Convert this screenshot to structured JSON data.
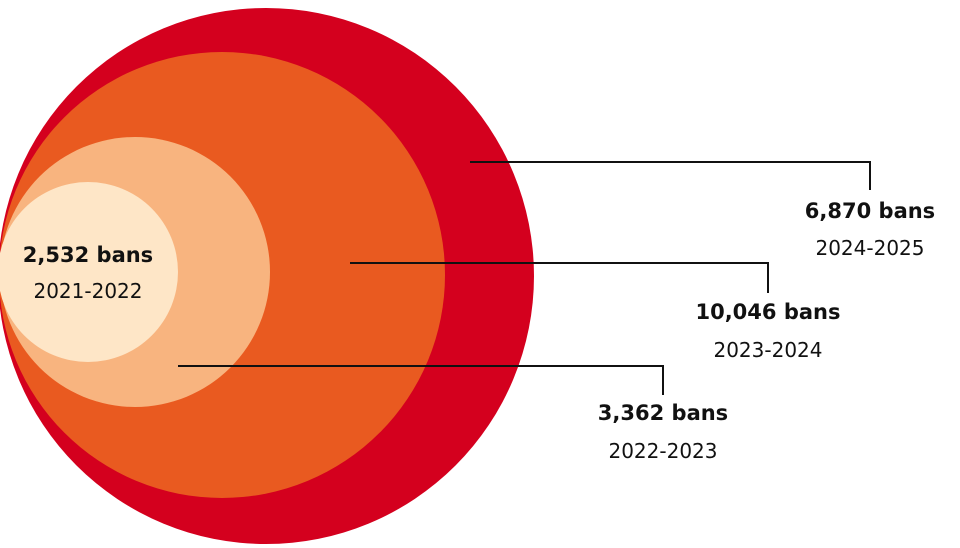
{
  "chart_data": {
    "type": "nested-bubble",
    "title": "",
    "unit": "bans",
    "series": [
      {
        "period": "2024-2025",
        "value": 6870,
        "label": "6,870 bans",
        "color": "#d4001e"
      },
      {
        "period": "2023-2024",
        "value": 10046,
        "label": "10,046 bans",
        "color": "#e95a20"
      },
      {
        "period": "2022-2023",
        "value": 3362,
        "label": "3,362 bans",
        "color": "#f8b47f"
      },
      {
        "period": "2021-2022",
        "value": 2532,
        "label": "2,532 bans",
        "color": "#fee6c7"
      }
    ]
  }
}
